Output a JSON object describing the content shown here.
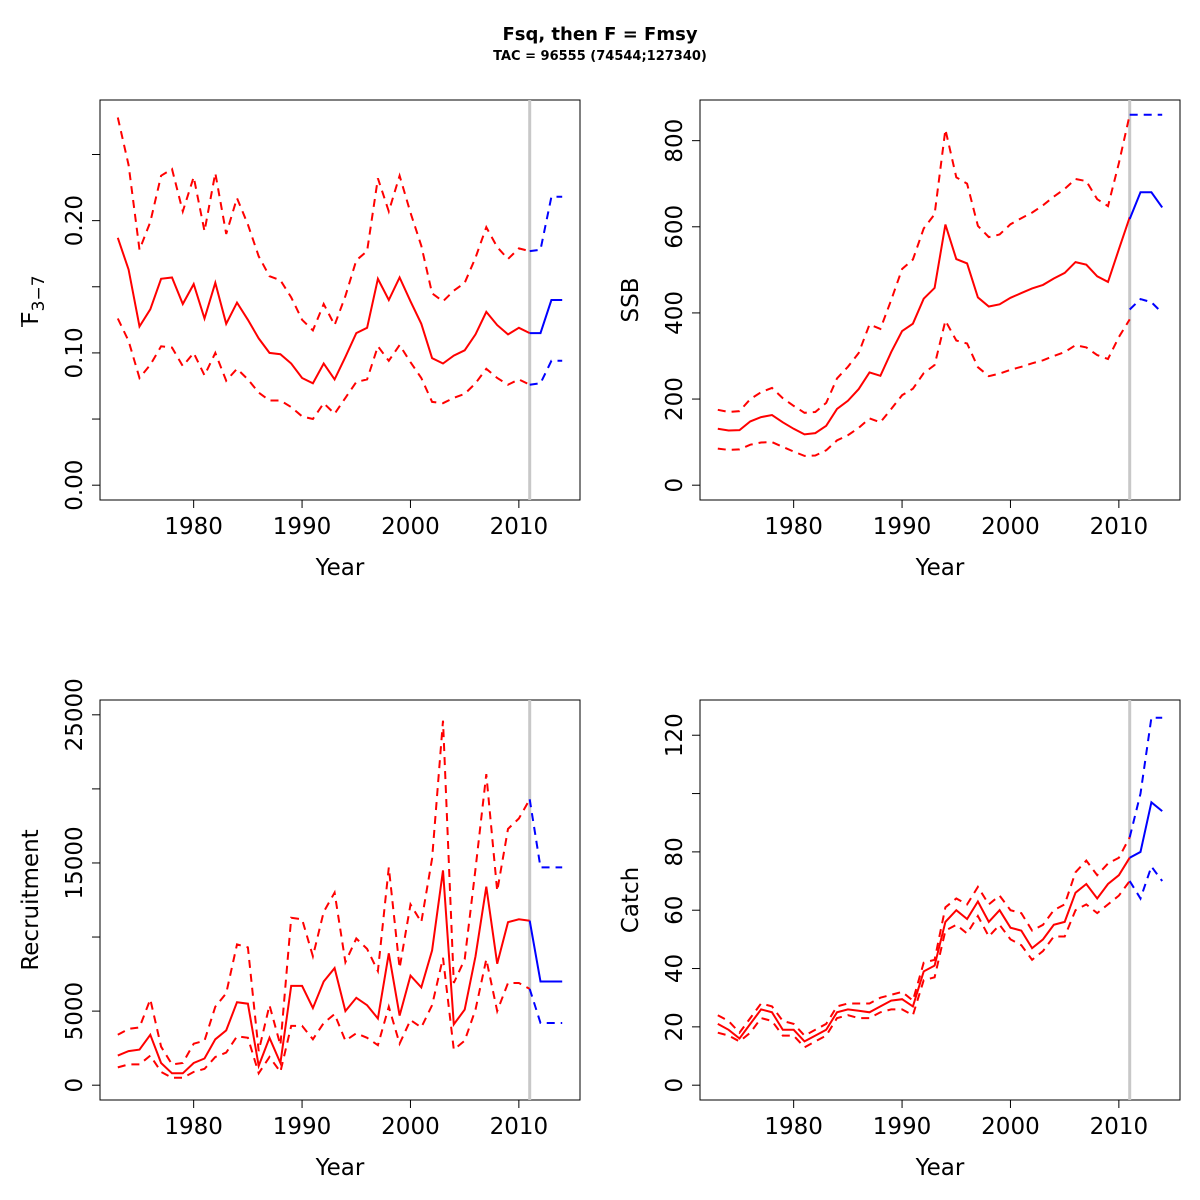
{
  "figure": {
    "title": "Fsq, then F = Fmsy",
    "subtitle": "TAC = 96555 (74544;127340)"
  },
  "colors": {
    "historic": "#ff0000",
    "projection": "#0000ff",
    "vline": "#c8c8c8"
  },
  "chart_data": [
    {
      "id": "f",
      "type": "line",
      "xlabel": "Year",
      "ylabel": "F",
      "ylabel_bar": "F",
      "ylabel_sub": "3-7",
      "ylabel_sub_display": "3−7",
      "xlim": [
        1973,
        2014
      ],
      "ylim": [
        0,
        0.28
      ],
      "xticks": [
        1980,
        1990,
        2000,
        2010
      ],
      "xtick_labels": [
        "1980",
        "1990",
        "2000",
        "2010"
      ],
      "yticks": [
        0.0,
        0.05,
        0.1,
        0.15,
        0.2,
        0.25
      ],
      "ytick_labels": [
        "0.00",
        "",
        "0.10",
        "",
        "0.20",
        ""
      ],
      "vline": 2011,
      "hist_x": [
        1973,
        1974,
        1975,
        1976,
        1977,
        1978,
        1979,
        1980,
        1981,
        1982,
        1983,
        1984,
        1985,
        1986,
        1987,
        1988,
        1989,
        1990,
        1991,
        1992,
        1993,
        1994,
        1995,
        1996,
        1997,
        1998,
        1999,
        2000,
        2001,
        2002,
        2003,
        2004,
        2005,
        2006,
        2007,
        2008,
        2009,
        2010,
        2011
      ],
      "hist_mid": [
        0.187,
        0.163,
        0.12,
        0.133,
        0.156,
        0.157,
        0.137,
        0.152,
        0.126,
        0.153,
        0.122,
        0.138,
        0.125,
        0.111,
        0.1,
        0.099,
        0.092,
        0.081,
        0.077,
        0.092,
        0.08,
        0.097,
        0.115,
        0.119,
        0.156,
        0.14,
        0.157,
        0.139,
        0.122,
        0.096,
        0.092,
        0.098,
        0.102,
        0.114,
        0.131,
        0.121,
        0.114,
        0.119,
        0.115
      ],
      "hist_up": [
        0.278,
        0.242,
        0.178,
        0.199,
        0.234,
        0.239,
        0.207,
        0.233,
        0.192,
        0.236,
        0.19,
        0.217,
        0.197,
        0.173,
        0.158,
        0.155,
        0.142,
        0.125,
        0.117,
        0.137,
        0.121,
        0.143,
        0.17,
        0.177,
        0.232,
        0.207,
        0.234,
        0.206,
        0.181,
        0.145,
        0.139,
        0.147,
        0.153,
        0.172,
        0.195,
        0.18,
        0.171,
        0.179,
        0.177
      ],
      "hist_lo": [
        0.126,
        0.109,
        0.081,
        0.091,
        0.105,
        0.104,
        0.09,
        0.1,
        0.083,
        0.1,
        0.079,
        0.088,
        0.08,
        0.07,
        0.064,
        0.064,
        0.059,
        0.052,
        0.05,
        0.062,
        0.054,
        0.066,
        0.078,
        0.08,
        0.105,
        0.094,
        0.106,
        0.093,
        0.081,
        0.063,
        0.062,
        0.066,
        0.069,
        0.077,
        0.088,
        0.081,
        0.076,
        0.08,
        0.076
      ],
      "proj_x": [
        2011,
        2012,
        2013,
        2014
      ],
      "proj_mid": [
        0.115,
        0.115,
        0.14,
        0.14
      ],
      "proj_up": [
        0.177,
        0.178,
        0.218,
        0.218
      ],
      "proj_lo": [
        0.076,
        0.077,
        0.094,
        0.094
      ]
    },
    {
      "id": "ssb",
      "type": "line",
      "xlabel": "Year",
      "ylabel": "SSB",
      "xlim": [
        1973,
        2014
      ],
      "ylim": [
        0,
        860
      ],
      "xticks": [
        1980,
        1990,
        2000,
        2010
      ],
      "xtick_labels": [
        "1980",
        "1990",
        "2000",
        "2010"
      ],
      "yticks": [
        0,
        200,
        400,
        600,
        800
      ],
      "ytick_labels": [
        "0",
        "200",
        "400",
        "600",
        "800"
      ],
      "vline": 2011,
      "hist_x": [
        1973,
        1974,
        1975,
        1976,
        1977,
        1978,
        1979,
        1980,
        1981,
        1982,
        1983,
        1984,
        1985,
        1986,
        1987,
        1988,
        1989,
        1990,
        1991,
        1992,
        1993,
        1994,
        1995,
        1996,
        1997,
        1998,
        1999,
        2000,
        2001,
        2002,
        2003,
        2004,
        2005,
        2006,
        2007,
        2008,
        2009,
        2010,
        2011
      ],
      "hist_mid": [
        131,
        127,
        128,
        148,
        158,
        163,
        146,
        131,
        118,
        121,
        138,
        177,
        196,
        223,
        262,
        254,
        309,
        358,
        375,
        433,
        458,
        605,
        525,
        515,
        436,
        415,
        420,
        435,
        446,
        457,
        465,
        480,
        493,
        518,
        512,
        485,
        472,
        548,
        622
      ],
      "hist_up": [
        175,
        170,
        172,
        200,
        216,
        226,
        202,
        184,
        168,
        170,
        191,
        248,
        275,
        307,
        373,
        363,
        430,
        502,
        524,
        596,
        629,
        826,
        715,
        700,
        602,
        576,
        582,
        606,
        620,
        633,
        650,
        670,
        688,
        711,
        706,
        664,
        648,
        748,
        860
      ],
      "hist_lo": [
        85,
        82,
        83,
        94,
        99,
        100,
        89,
        78,
        68,
        69,
        81,
        104,
        116,
        133,
        155,
        146,
        177,
        209,
        224,
        260,
        279,
        382,
        336,
        329,
        274,
        253,
        259,
        268,
        275,
        283,
        290,
        300,
        309,
        325,
        320,
        302,
        293,
        344,
        385
      ],
      "proj_x": [
        2011,
        2012,
        2013,
        2014
      ],
      "proj_mid": [
        618,
        680,
        680,
        645
      ],
      "proj_up": [
        860,
        860,
        860,
        860
      ],
      "proj_lo": [
        408,
        432,
        425,
        400
      ]
    },
    {
      "id": "recruitment",
      "type": "line",
      "xlabel": "Year",
      "ylabel": "Recruitment",
      "xlim": [
        1973,
        2014
      ],
      "ylim": [
        0,
        25000
      ],
      "xticks": [
        1980,
        1990,
        2000,
        2010
      ],
      "xtick_labels": [
        "1980",
        "1990",
        "2000",
        "2010"
      ],
      "yticks": [
        0,
        5000,
        10000,
        15000,
        20000,
        25000
      ],
      "ytick_labels": [
        "0",
        "5000",
        "",
        "15000",
        "",
        "25000"
      ],
      "vline": 2011,
      "hist_x": [
        1973,
        1974,
        1975,
        1976,
        1977,
        1978,
        1979,
        1980,
        1981,
        1982,
        1983,
        1984,
        1985,
        1986,
        1987,
        1988,
        1989,
        1990,
        1991,
        1992,
        1993,
        1994,
        1995,
        1996,
        1997,
        1998,
        1999,
        2000,
        2001,
        2002,
        2003,
        2004,
        2005,
        2006,
        2007,
        2008,
        2009,
        2010,
        2011
      ],
      "hist_mid": [
        2000,
        2300,
        2400,
        3400,
        1500,
        800,
        800,
        1500,
        1800,
        3100,
        3700,
        5600,
        5500,
        1300,
        3200,
        1500,
        6700,
        6700,
        5200,
        7000,
        7900,
        5000,
        5900,
        5400,
        4500,
        8900,
        4700,
        7400,
        6600,
        9100,
        14500,
        4100,
        5100,
        8700,
        13400,
        8200,
        11000,
        11200,
        11100
      ],
      "hist_up": [
        3400,
        3800,
        3900,
        5800,
        2600,
        1400,
        1500,
        2800,
        3000,
        5300,
        6200,
        9500,
        9300,
        2300,
        5400,
        2700,
        11300,
        11200,
        8700,
        11700,
        13000,
        8300,
        9900,
        9200,
        7700,
        14700,
        7900,
        12200,
        11000,
        15300,
        24600,
        6900,
        8500,
        14600,
        21000,
        13100,
        17300,
        18000,
        19300
      ],
      "hist_lo": [
        1200,
        1400,
        1400,
        2000,
        900,
        500,
        500,
        900,
        1100,
        1900,
        2200,
        3300,
        3200,
        800,
        1900,
        900,
        4000,
        4000,
        3100,
        4200,
        4800,
        3000,
        3500,
        3200,
        2700,
        5300,
        2800,
        4400,
        3900,
        5400,
        8600,
        2400,
        3000,
        5100,
        8500,
        5000,
        6900,
        6900,
        6500
      ],
      "proj_x": [
        2011,
        2012,
        2013,
        2014
      ],
      "proj_mid": [
        11100,
        7000,
        7000,
        7000
      ],
      "proj_up": [
        19300,
        14700,
        14700,
        14700
      ],
      "proj_lo": [
        6500,
        4200,
        4200,
        4200
      ]
    },
    {
      "id": "catch",
      "type": "line",
      "xlabel": "Year",
      "ylabel": "Catch",
      "xlim": [
        1973,
        2014
      ],
      "ylim": [
        0,
        127
      ],
      "xticks": [
        1980,
        1990,
        2000,
        2010
      ],
      "xtick_labels": [
        "1980",
        "1990",
        "2000",
        "2010"
      ],
      "yticks": [
        0,
        20,
        40,
        60,
        80,
        100,
        120
      ],
      "ytick_labels": [
        "0",
        "20",
        "40",
        "60",
        "80",
        "",
        "120"
      ],
      "vline": 2011,
      "hist_x": [
        1973,
        1974,
        1975,
        1976,
        1977,
        1978,
        1979,
        1980,
        1981,
        1982,
        1983,
        1984,
        1985,
        1986,
        1987,
        1988,
        1989,
        1990,
        1991,
        1992,
        1993,
        1994,
        1995,
        1996,
        1997,
        1998,
        1999,
        2000,
        2001,
        2002,
        2003,
        2004,
        2005,
        2006,
        2007,
        2008,
        2009,
        2010,
        2011
      ],
      "hist_mid": [
        21,
        19,
        16,
        21,
        26,
        25,
        19,
        19,
        15,
        17,
        19,
        25,
        26,
        25.5,
        25,
        27,
        29,
        29.5,
        27,
        39,
        41,
        56,
        60,
        57,
        63,
        56,
        60,
        54,
        53,
        47,
        50,
        55,
        56,
        66,
        69,
        64,
        69,
        72,
        78
      ],
      "hist_up": [
        24,
        22,
        18,
        23,
        28,
        27,
        22,
        21,
        17,
        19,
        21,
        27,
        28,
        28,
        28,
        30,
        31,
        32,
        29,
        42,
        43,
        61,
        64,
        62,
        68,
        62,
        65,
        60,
        59,
        53,
        55,
        60,
        62,
        73,
        77,
        72,
        76,
        78,
        85
      ],
      "hist_lo": [
        18,
        17,
        15,
        18,
        23,
        22,
        17,
        17,
        13,
        15,
        17,
        23,
        24,
        23,
        23,
        25,
        26,
        26,
        24,
        36,
        37,
        53,
        55,
        52,
        58,
        51,
        55,
        50,
        48,
        43,
        46,
        51,
        51,
        60,
        62,
        59,
        62,
        65,
        70
      ],
      "proj_x": [
        2011,
        2012,
        2013,
        2014
      ],
      "proj_mid": [
        78,
        80,
        97,
        94
      ],
      "proj_up": [
        85,
        100,
        126,
        126
      ],
      "proj_lo": [
        70,
        64,
        75,
        70
      ]
    }
  ]
}
